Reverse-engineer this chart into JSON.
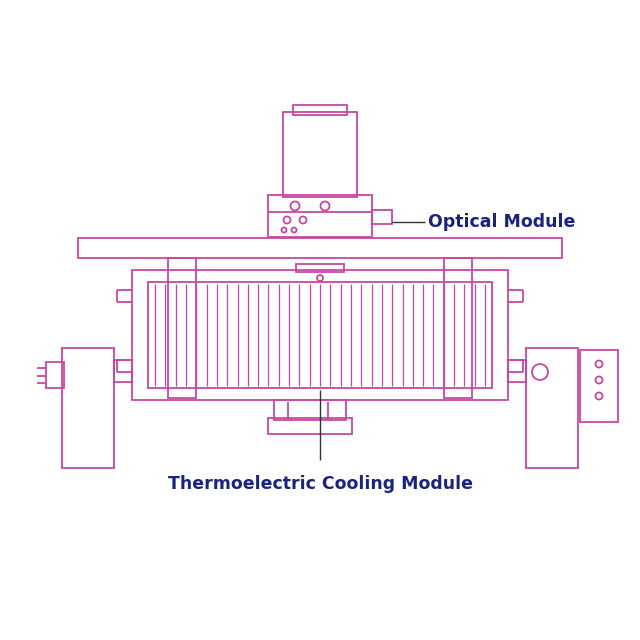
{
  "bg_color": "#ffffff",
  "line_color": "#c946a0",
  "label_color": "#1a237e",
  "pointer_color": "#333333",
  "label_optical": "Optical Module",
  "label_thermo": "Thermoelectric Cooling Module",
  "figsize": [
    6.4,
    6.4
  ],
  "dpi": 100
}
